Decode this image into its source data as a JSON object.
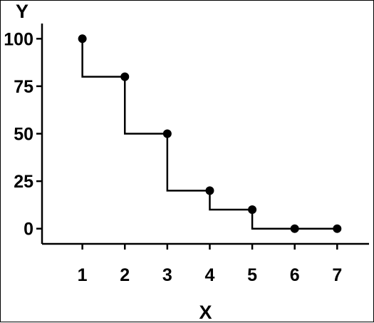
{
  "chart_data": {
    "type": "line",
    "title": "",
    "xlabel": "X",
    "ylabel": "Y",
    "x": [
      1,
      2,
      3,
      4,
      5,
      6,
      7
    ],
    "y": [
      100,
      80,
      50,
      20,
      10,
      0,
      0
    ],
    "xlim": [
      0.05,
      7.75
    ],
    "ylim": [
      -8,
      108
    ],
    "x_ticks": [
      1,
      2,
      3,
      4,
      5,
      6,
      7
    ],
    "y_ticks": [
      0,
      25,
      50,
      75,
      100
    ],
    "step": "post",
    "markers": "filled-circle",
    "grid": false,
    "legend": "none",
    "colors": {
      "line": "#000000",
      "marker": "#000000",
      "axis": "#000000"
    }
  }
}
